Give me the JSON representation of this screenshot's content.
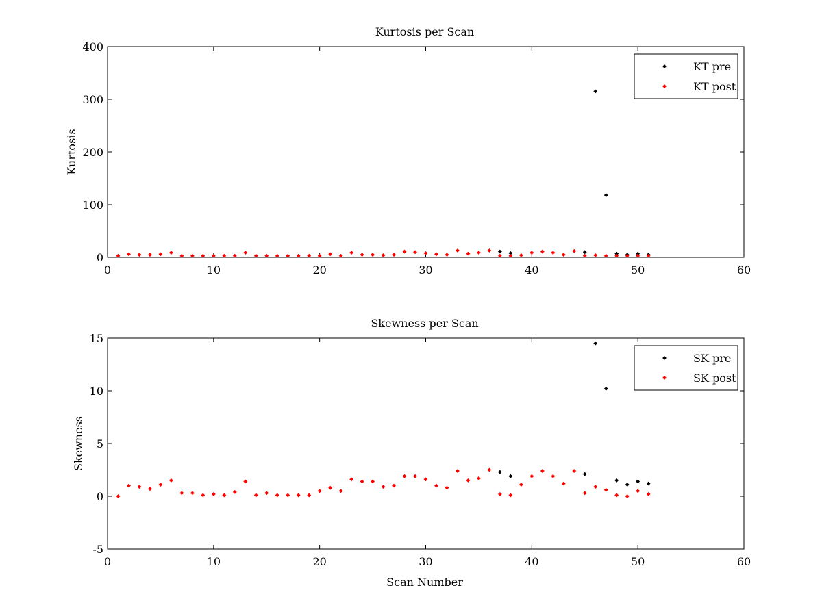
{
  "chart_data": [
    {
      "type": "scatter",
      "title": "Kurtosis per Scan",
      "xlabel": "",
      "ylabel": "Kurtosis",
      "xlim": [
        0,
        60
      ],
      "ylim": [
        0,
        400
      ],
      "xticks": [
        0,
        10,
        20,
        30,
        40,
        50,
        60
      ],
      "yticks": [
        0,
        100,
        200,
        300,
        400
      ],
      "grid": false,
      "legend_position": "top-right",
      "series": [
        {
          "name": "KT pre",
          "color": "#000000",
          "marker": "dot",
          "points": [
            [
              37,
              11
            ],
            [
              38,
              8
            ],
            [
              45,
              10
            ],
            [
              46,
              315
            ],
            [
              47,
              118
            ],
            [
              48,
              7
            ],
            [
              49,
              5
            ],
            [
              50,
              7
            ],
            [
              51,
              5
            ]
          ]
        },
        {
          "name": "KT post",
          "color": "#ff0000",
          "marker": "dot",
          "points": [
            [
              1,
              3
            ],
            [
              2,
              6
            ],
            [
              3,
              5
            ],
            [
              4,
              5
            ],
            [
              5,
              6
            ],
            [
              6,
              9
            ],
            [
              7,
              3
            ],
            [
              8,
              3
            ],
            [
              9,
              3
            ],
            [
              10,
              3
            ],
            [
              11,
              3
            ],
            [
              12,
              3
            ],
            [
              13,
              9
            ],
            [
              14,
              3
            ],
            [
              15,
              3
            ],
            [
              16,
              3
            ],
            [
              17,
              3
            ],
            [
              18,
              3
            ],
            [
              19,
              3
            ],
            [
              20,
              3
            ],
            [
              21,
              6
            ],
            [
              22,
              3
            ],
            [
              23,
              9
            ],
            [
              24,
              5
            ],
            [
              25,
              5
            ],
            [
              26,
              4
            ],
            [
              27,
              5
            ],
            [
              28,
              11
            ],
            [
              29,
              10
            ],
            [
              30,
              8
            ],
            [
              31,
              6
            ],
            [
              32,
              5
            ],
            [
              33,
              13
            ],
            [
              34,
              7
            ],
            [
              35,
              9
            ],
            [
              36,
              13
            ],
            [
              37,
              3
            ],
            [
              38,
              3
            ],
            [
              39,
              4
            ],
            [
              40,
              9
            ],
            [
              41,
              11
            ],
            [
              42,
              9
            ],
            [
              43,
              5
            ],
            [
              44,
              12
            ],
            [
              45,
              3
            ],
            [
              46,
              4
            ],
            [
              47,
              3
            ],
            [
              48,
              3
            ],
            [
              49,
              3
            ],
            [
              50,
              3
            ],
            [
              51,
              3
            ]
          ]
        }
      ]
    },
    {
      "type": "scatter",
      "title": "Skewness per Scan",
      "xlabel": "Scan Number",
      "ylabel": "Skewness",
      "xlim": [
        0,
        60
      ],
      "ylim": [
        -5,
        15
      ],
      "xticks": [
        0,
        10,
        20,
        30,
        40,
        50,
        60
      ],
      "yticks": [
        -5,
        0,
        5,
        10,
        15
      ],
      "grid": false,
      "legend_position": "top-right",
      "series": [
        {
          "name": "SK pre",
          "color": "#000000",
          "marker": "dot",
          "points": [
            [
              37,
              2.3
            ],
            [
              38,
              1.9
            ],
            [
              45,
              2.1
            ],
            [
              46,
              14.5
            ],
            [
              47,
              10.2
            ],
            [
              48,
              1.5
            ],
            [
              49,
              1.1
            ],
            [
              50,
              1.4
            ],
            [
              51,
              1.2
            ]
          ]
        },
        {
          "name": "SK post",
          "color": "#ff0000",
          "marker": "dot",
          "points": [
            [
              1,
              0.0
            ],
            [
              2,
              1.0
            ],
            [
              3,
              0.9
            ],
            [
              4,
              0.7
            ],
            [
              5,
              1.1
            ],
            [
              6,
              1.5
            ],
            [
              7,
              0.3
            ],
            [
              8,
              0.3
            ],
            [
              9,
              0.1
            ],
            [
              10,
              0.2
            ],
            [
              11,
              0.1
            ],
            [
              12,
              0.4
            ],
            [
              13,
              1.4
            ],
            [
              14,
              0.1
            ],
            [
              15,
              0.3
            ],
            [
              16,
              0.1
            ],
            [
              17,
              0.1
            ],
            [
              18,
              0.1
            ],
            [
              19,
              0.1
            ],
            [
              20,
              0.5
            ],
            [
              21,
              0.8
            ],
            [
              22,
              0.5
            ],
            [
              23,
              1.6
            ],
            [
              24,
              1.4
            ],
            [
              25,
              1.4
            ],
            [
              26,
              0.9
            ],
            [
              27,
              1.0
            ],
            [
              28,
              1.9
            ],
            [
              29,
              1.9
            ],
            [
              30,
              1.6
            ],
            [
              31,
              1.0
            ],
            [
              32,
              0.8
            ],
            [
              33,
              2.4
            ],
            [
              34,
              1.5
            ],
            [
              35,
              1.7
            ],
            [
              36,
              2.5
            ],
            [
              37,
              0.2
            ],
            [
              38,
              0.1
            ],
            [
              39,
              1.1
            ],
            [
              40,
              1.9
            ],
            [
              41,
              2.4
            ],
            [
              42,
              1.9
            ],
            [
              43,
              1.2
            ],
            [
              44,
              2.4
            ],
            [
              45,
              0.3
            ],
            [
              46,
              0.9
            ],
            [
              47,
              0.6
            ],
            [
              48,
              0.1
            ],
            [
              49,
              0.0
            ],
            [
              50,
              0.5
            ],
            [
              51,
              0.2
            ]
          ]
        }
      ]
    }
  ]
}
